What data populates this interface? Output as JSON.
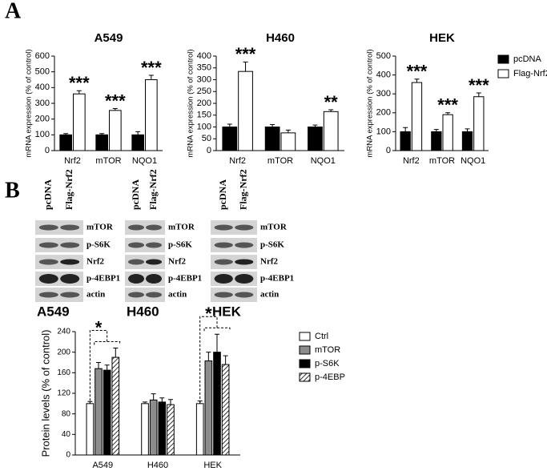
{
  "panel_labels": [
    "A",
    "B"
  ],
  "chart_data": [
    {
      "type": "bar",
      "title": "A549",
      "ylabel": "mRNA expression (% of control)",
      "categories": [
        "Nrf2",
        "mTOR",
        "NQO1"
      ],
      "series": [
        {
          "color": "#000000",
          "values": [
            100,
            100,
            100
          ],
          "errors": [
            8,
            8,
            20
          ]
        },
        {
          "color": "#ffffff",
          "values": [
            360,
            255,
            450
          ],
          "errors": [
            20,
            12,
            28
          ]
        }
      ],
      "significance": [
        "***",
        "***",
        "***"
      ],
      "ylim": [
        0,
        600
      ],
      "yticks": [
        0,
        100,
        200,
        300,
        400,
        500,
        600
      ]
    },
    {
      "type": "bar",
      "title": "H460",
      "ylabel": "mRNA expression (% of control)",
      "categories": [
        "Nrf2",
        "mTOR",
        "NQO1"
      ],
      "series": [
        {
          "color": "#000000",
          "values": [
            100,
            100,
            100
          ],
          "errors": [
            12,
            10,
            8
          ]
        },
        {
          "color": "#ffffff",
          "values": [
            335,
            75,
            165
          ],
          "errors": [
            40,
            12,
            8
          ]
        }
      ],
      "significance": [
        "***",
        null,
        "**"
      ],
      "ylim": [
        0,
        400
      ],
      "yticks": [
        0,
        50,
        100,
        150,
        200,
        250,
        300,
        350,
        400
      ]
    },
    {
      "type": "bar",
      "title": "HEK",
      "ylabel": "mRNA expression (% of control)",
      "categories": [
        "Nrf2",
        "mTOR",
        "NQO1"
      ],
      "series": [
        {
          "name": "pcDNA",
          "color": "#000000",
          "values": [
            100,
            100,
            100
          ],
          "errors": [
            22,
            12,
            15
          ]
        },
        {
          "name": "Flag-Nrf2",
          "color": "#ffffff",
          "values": [
            360,
            190,
            285
          ],
          "errors": [
            18,
            10,
            20
          ]
        }
      ],
      "significance": [
        "***",
        "***",
        "***"
      ],
      "ylim": [
        0,
        500
      ],
      "yticks": [
        0,
        100,
        200,
        300,
        400,
        500
      ],
      "legend": "right"
    },
    {
      "type": "bar",
      "ylabel": "Protein levels (% of control)",
      "categories": [
        "A549",
        "H460",
        "HEK"
      ],
      "series": [
        {
          "name": "Ctrl",
          "color": "#ffffff",
          "values": [
            100,
            100,
            100
          ],
          "errors": [
            4,
            3,
            5
          ]
        },
        {
          "name": "mTOR",
          "color": "#8c8c8c",
          "values": [
            168,
            107,
            183
          ],
          "errors": [
            12,
            12,
            17
          ]
        },
        {
          "name": "p-S6K",
          "color": "#000000",
          "values": [
            165,
            103,
            200
          ],
          "errors": [
            10,
            8,
            35
          ]
        },
        {
          "name": "p-4EBP",
          "color": "#ffffff",
          "hatch": true,
          "values": [
            190,
            98,
            176
          ],
          "errors": [
            18,
            10,
            17
          ]
        }
      ],
      "significance": [
        "*",
        null,
        "*"
      ],
      "ylim": [
        0,
        240
      ],
      "yticks": [
        0,
        40,
        80,
        120,
        160,
        200,
        240
      ],
      "legend": "top right",
      "brackets": true
    }
  ],
  "blots": [
    {
      "title": "A549",
      "columns": [
        "pcDNA",
        "Flag-Nrf2"
      ],
      "rows": [
        "mTOR",
        "p-S6K",
        "Nrf2",
        "p-4EBP1",
        "actin"
      ]
    },
    {
      "title": "H460",
      "columns": [
        "pcDNA",
        "Flag-Nrf2"
      ],
      "rows": [
        "mTOR",
        "p-S6K",
        "Nrf2",
        "p-4EBP1",
        "actin"
      ]
    },
    {
      "title": "HEK",
      "columns": [
        "pcDNA",
        "Flag-Nrf2"
      ],
      "rows": [
        "mTOR",
        "p-S6K",
        "Nrf2",
        "p-4EBP1",
        "actin"
      ]
    }
  ]
}
